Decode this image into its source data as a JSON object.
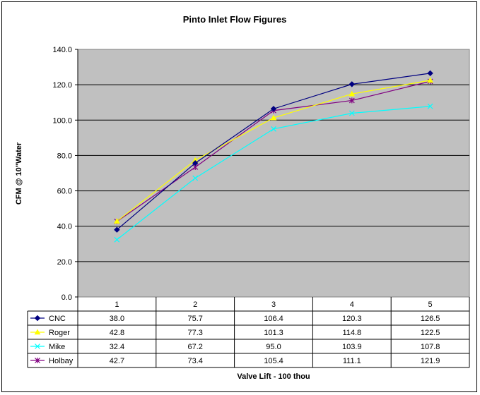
{
  "chart_data": {
    "type": "line",
    "title": "Pinto Inlet Flow Figures",
    "xlabel": "Valve Lift - 100 thou",
    "ylabel": "CFM @ 10\"Water",
    "categories": [
      "1",
      "2",
      "3",
      "4",
      "5"
    ],
    "ylim": [
      0,
      140
    ],
    "yticks": [
      "0.0",
      "20.0",
      "40.0",
      "60.0",
      "80.0",
      "100.0",
      "120.0",
      "140.0"
    ],
    "grid": true,
    "legend": "data-table-left",
    "series": [
      {
        "name": "CNC",
        "color": "#000080",
        "marker": "diamond",
        "values": [
          38.0,
          75.7,
          106.4,
          120.3,
          126.5
        ],
        "labels": [
          "38.0",
          "75.7",
          "106.4",
          "120.3",
          "126.5"
        ]
      },
      {
        "name": "Roger",
        "color": "#FFFF00",
        "marker": "triangle",
        "values": [
          42.8,
          77.3,
          101.3,
          114.8,
          122.5
        ],
        "labels": [
          "42.8",
          "77.3",
          "101.3",
          "114.8",
          "122.5"
        ]
      },
      {
        "name": "Mike",
        "color": "#00FFFF",
        "marker": "x",
        "values": [
          32.4,
          67.2,
          95.0,
          103.9,
          107.8
        ],
        "labels": [
          "32.4",
          "67.2",
          "95.0",
          "103.9",
          "107.8"
        ]
      },
      {
        "name": "Holbay",
        "color": "#800080",
        "marker": "star",
        "values": [
          42.7,
          73.4,
          105.4,
          111.1,
          121.9
        ],
        "labels": [
          "42.7",
          "73.4",
          "105.4",
          "111.1",
          "121.9"
        ]
      }
    ]
  }
}
